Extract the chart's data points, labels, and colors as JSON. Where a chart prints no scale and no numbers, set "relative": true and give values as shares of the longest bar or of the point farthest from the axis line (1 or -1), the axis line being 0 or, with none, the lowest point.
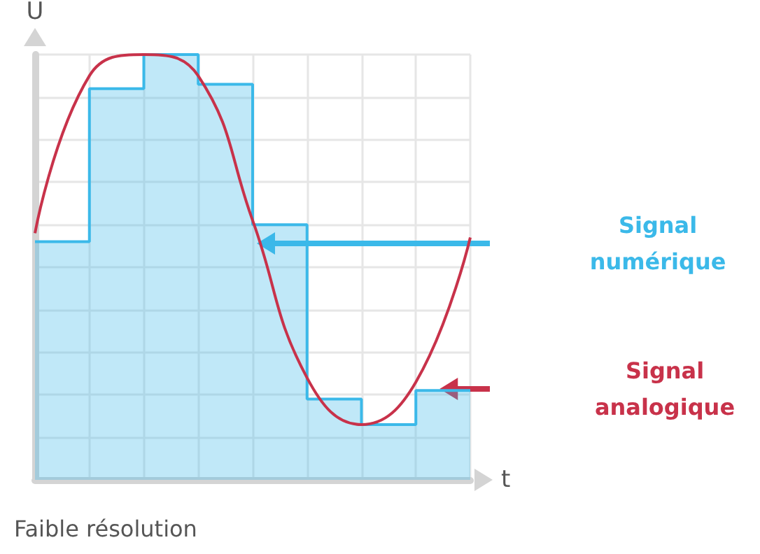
{
  "chart_data": {
    "type": "area",
    "relative": true,
    "xlabel": "t",
    "ylabel": "U",
    "annotations": [
      "Faible résolution"
    ],
    "categories": [
      null,
      null,
      null,
      null,
      null,
      null,
      null,
      null,
      null
    ],
    "grid": true,
    "legend": false,
    "marker": "none",
    "series": [
      {
        "name": "Signal numérique",
        "color": "#3bb9e9",
        "values": [
          0.56,
          0.92,
          1,
          0.93,
          0.6,
          0.19,
          0.13,
          0.21,
          0.21
        ]
      },
      {
        "name": "Signal analogique",
        "type": "line",
        "color": "#c8324a",
        "values": [
          0.58,
          0.95,
          1,
          0.95,
          0.61,
          0.24,
          0.13,
          0.23,
          0.57
        ]
      }
    ]
  }
}
